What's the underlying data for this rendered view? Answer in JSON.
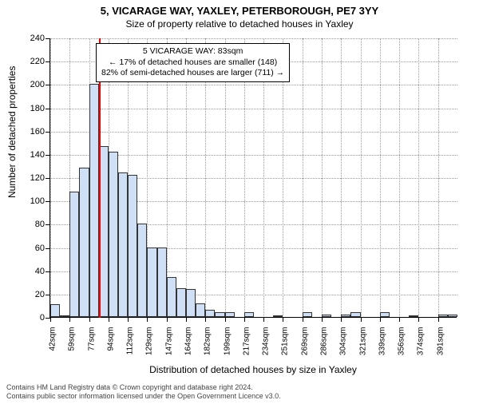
{
  "title": "5, VICARAGE WAY, YAXLEY, PETERBOROUGH, PE7 3YY",
  "subtitle": "Size of property relative to detached houses in Yaxley",
  "chart": {
    "type": "histogram",
    "y_label": "Number of detached properties",
    "x_label": "Distribution of detached houses by size in Yaxley",
    "ylim": [
      0,
      240
    ],
    "ytick_step": 20,
    "x_categories": [
      "42sqm",
      "59sqm",
      "77sqm",
      "94sqm",
      "112sqm",
      "129sqm",
      "147sqm",
      "164sqm",
      "182sqm",
      "199sqm",
      "217sqm",
      "234sqm",
      "251sqm",
      "269sqm",
      "286sqm",
      "304sqm",
      "321sqm",
      "339sqm",
      "356sqm",
      "374sqm",
      "391sqm"
    ],
    "values": [
      11,
      1,
      108,
      128,
      200,
      147,
      142,
      124,
      122,
      80,
      60,
      60,
      34,
      25,
      24,
      12,
      6,
      4,
      4,
      0,
      4,
      0,
      0,
      1,
      0,
      0,
      4,
      0,
      2,
      0,
      2,
      4,
      0,
      0,
      4,
      0,
      0,
      1,
      0,
      0,
      2,
      2
    ],
    "bar_color": "#cfdff5",
    "bar_border": "#333333",
    "gridline_color": "#999999",
    "background_color": "#ffffff",
    "ref_line": {
      "index_half": 5,
      "color": "#ff0000"
    },
    "annotation": {
      "line1": "5 VICARAGE WAY: 83sqm",
      "line2": "← 17% of detached houses are smaller (148)",
      "line3": "82% of semi-detached houses are larger (711) →"
    },
    "title_fontsize": 13,
    "subtitle_fontsize": 12,
    "label_fontsize": 12,
    "tick_fontsize": 11
  },
  "attribution": {
    "line1": "Contains HM Land Registry data © Crown copyright and database right 2024.",
    "line2": "Contains public sector information licensed under the Open Government Licence v3.0."
  }
}
